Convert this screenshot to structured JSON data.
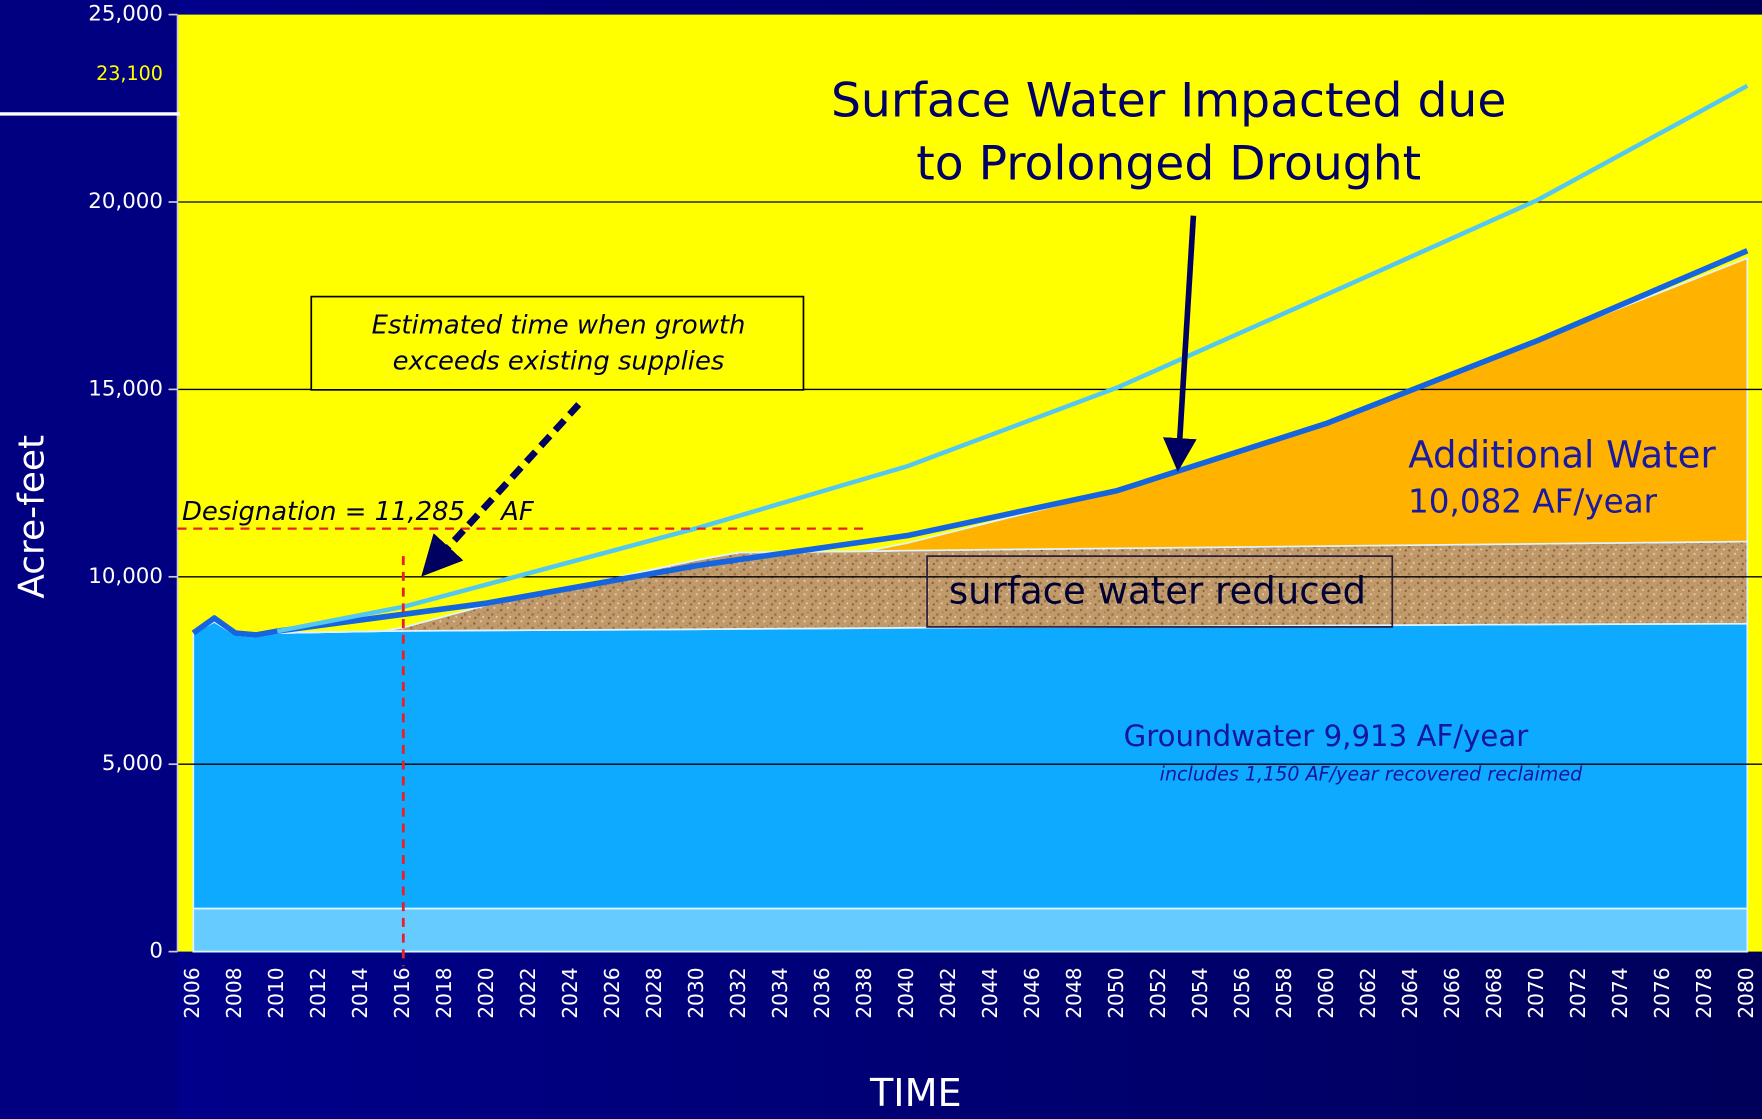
{
  "chart_data": {
    "type": "area",
    "title_lines": [
      "Surface Water Impacted due",
      "to Prolonged Drought"
    ],
    "y_label": "Acre-feet",
    "x_label": "TIME",
    "ylim": [
      0,
      25000
    ],
    "yticks": [
      0,
      {
        "value": 5000,
        "label": "5,000"
      },
      {
        "value": 10000,
        "label": "10,000"
      },
      {
        "value": 15000,
        "label": "15,000"
      },
      {
        "value": 20000,
        "label": "20,000"
      },
      {
        "value": 25000,
        "label": "25,000"
      }
    ],
    "y_marker": {
      "value": 23100,
      "label": "23,100"
    },
    "xlim": [
      2005.25,
      2080.7
    ],
    "xticks": [
      2006,
      2008,
      2010,
      2012,
      2014,
      2016,
      2018,
      2020,
      2022,
      2024,
      2026,
      2028,
      2030,
      2032,
      2034,
      2036,
      2038,
      2040,
      2042,
      2044,
      2046,
      2048,
      2050,
      2052,
      2054,
      2056,
      2058,
      2060,
      2062,
      2064,
      2066,
      2068,
      2070,
      2072,
      2074,
      2076,
      2078,
      2080
    ],
    "grid": true,
    "x": [
      2006,
      2007,
      2008,
      2009,
      2010,
      2015,
      2016,
      2020,
      2030,
      2032,
      2038,
      2040,
      2050,
      2060,
      2070,
      2080
    ],
    "series": [
      {
        "color": "#66ccff",
        "values": [
          1150,
          1150,
          1150,
          1150,
          1150,
          1150,
          1150,
          1150,
          1150,
          1150,
          1150,
          1150,
          1150,
          1150,
          1150,
          1150
        ]
      },
      {
        "color": "#0eaaff",
        "values": [
          7350,
          7650,
          7300,
          7250,
          7350,
          7400,
          7405,
          7420,
          7450,
          7460,
          7480,
          7490,
          7520,
          7550,
          7580,
          7600
        ]
      },
      {
        "color": "#c09a6a",
        "texture": true,
        "values": [
          0,
          0,
          0,
          0,
          0,
          0,
          95,
          680,
          1850,
          2040,
          2050,
          2060,
          2090,
          2120,
          2150,
          2190
        ]
      },
      {
        "color": "#ffb300",
        "values": [
          0,
          0,
          0,
          0,
          0,
          0,
          0,
          0,
          0,
          0,
          0,
          200,
          1540,
          3280,
          5420,
          7560
        ]
      }
    ],
    "lines": [
      {
        "color": "#1565e0",
        "width": 5,
        "x": [
          2006,
          2007,
          2008,
          2009,
          2010,
          2016,
          2020,
          2030,
          2040,
          2050,
          2060,
          2070,
          2080
        ],
        "values": [
          8500,
          8900,
          8500,
          8450,
          8550,
          9000,
          9300,
          10300,
          11100,
          12300,
          14100,
          16300,
          18700
        ]
      },
      {
        "color": "#55c8f0",
        "width": 4,
        "x": [
          2010,
          2016,
          2020,
          2030,
          2040,
          2050,
          2060,
          2070,
          2080
        ],
        "values": [
          8550,
          9200,
          9800,
          11300,
          12950,
          15050,
          17540,
          20050,
          23100
        ]
      }
    ],
    "designation": {
      "value": 11285,
      "label": "Designation = 11,285"
    },
    "designation_unit": "AF",
    "crossover_x": 2016,
    "note_lines": [
      "Estimated time when growth",
      "exceeds existing supplies"
    ],
    "additional_label": "Additional Water",
    "additional_amount": "10,082 AF/year",
    "surface_label": "surface water reduced",
    "groundwater_label": "Groundwater 9,913 AF/year",
    "groundwater_note": "includes 1,150 AF/year recovered reclaimed"
  }
}
